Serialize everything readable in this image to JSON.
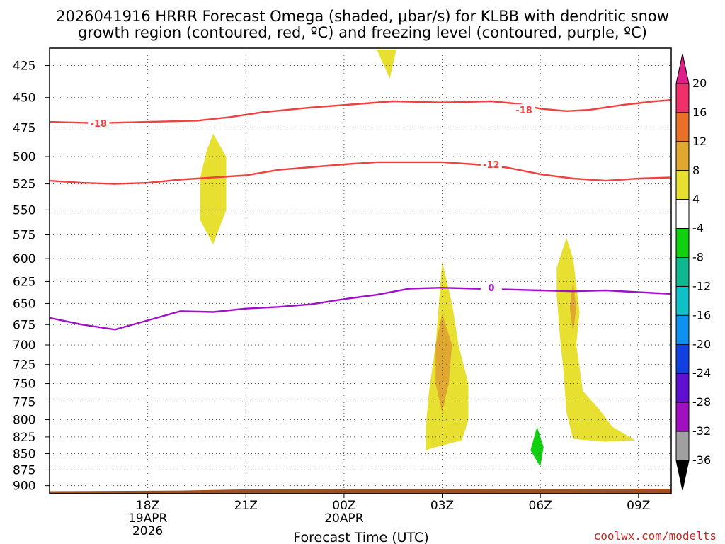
{
  "chart_data": {
    "type": "contour",
    "title_lines": [
      "2026041916 HRRR Forecast Omega (shaded, μbar/s) for KLBB with dendritic snow",
      "growth region (contoured, red, ºC) and freezing level (contoured, purple, ºC)"
    ],
    "xlabel": "Forecast Time (UTC)",
    "credit": "coolwx.com/modelts",
    "x_axis": {
      "unit": "hours since 2026-04-19 00Z",
      "range": [
        15,
        34
      ],
      "ticks": [
        {
          "value": 18,
          "lines": [
            "18Z",
            "19APR",
            "2026"
          ]
        },
        {
          "value": 21,
          "lines": [
            "21Z"
          ]
        },
        {
          "value": 24,
          "lines": [
            "00Z",
            "20APR"
          ]
        },
        {
          "value": 27,
          "lines": [
            "03Z"
          ]
        },
        {
          "value": 30,
          "lines": [
            "06Z"
          ]
        },
        {
          "value": 33,
          "lines": [
            "09Z"
          ]
        }
      ]
    },
    "y_axis": {
      "unit": "hPa",
      "scale": "log",
      "range": [
        913,
        412
      ],
      "ticks": [
        425,
        450,
        475,
        500,
        525,
        550,
        575,
        600,
        625,
        650,
        675,
        700,
        725,
        750,
        775,
        800,
        825,
        850,
        875,
        900
      ]
    },
    "grid": true,
    "colorbar": {
      "labels": [
        "20",
        "16",
        "12",
        "8",
        "4",
        "-4",
        "-8",
        "-12",
        "-16",
        "-20",
        "-24",
        "-28",
        "-32",
        "-36"
      ],
      "colors": [
        "#f0306a",
        "#e87028",
        "#e0a830",
        "#e8e030",
        "#ffffff",
        "#10d010",
        "#10b890",
        "#10c0c8",
        "#1090f0",
        "#1040e0",
        "#6010d0",
        "#a010c0",
        "#a0a0a0"
      ],
      "top_color": "#e0208a",
      "bottom_color": "#000000"
    },
    "contours": [
      {
        "level": "-18",
        "color": "#f04040",
        "points": [
          [
            15,
            470
          ],
          [
            16.5,
            471
          ],
          [
            18,
            470
          ],
          [
            19.5,
            469
          ],
          [
            20.5,
            466
          ],
          [
            21.5,
            462
          ],
          [
            23,
            458
          ],
          [
            24.5,
            455
          ],
          [
            25.5,
            453
          ],
          [
            27,
            454
          ],
          [
            28.5,
            453
          ],
          [
            29.3,
            455
          ],
          [
            30,
            459
          ],
          [
            30.8,
            461
          ],
          [
            31.5,
            460
          ],
          [
            32.5,
            456
          ],
          [
            33.5,
            453
          ],
          [
            34,
            452
          ]
        ]
      },
      {
        "level": "-12",
        "color": "#f04040",
        "points": [
          [
            15,
            522
          ],
          [
            16,
            524
          ],
          [
            17,
            525
          ],
          [
            18,
            524
          ],
          [
            19,
            521
          ],
          [
            20,
            519
          ],
          [
            21,
            517
          ],
          [
            22,
            512
          ],
          [
            24,
            507
          ],
          [
            25,
            505
          ],
          [
            27,
            505
          ],
          [
            28,
            507
          ],
          [
            29,
            510
          ],
          [
            30,
            516
          ],
          [
            31,
            520
          ],
          [
            32,
            522
          ],
          [
            33,
            520
          ],
          [
            34,
            519
          ]
        ]
      },
      {
        "level": "0",
        "color": "#a010c8",
        "points": [
          [
            15,
            667
          ],
          [
            16,
            675
          ],
          [
            17,
            681
          ],
          [
            18,
            670
          ],
          [
            19,
            659
          ],
          [
            20,
            660
          ],
          [
            21,
            656
          ],
          [
            22,
            654
          ],
          [
            23,
            651
          ],
          [
            24,
            645
          ],
          [
            25,
            640
          ],
          [
            26,
            633
          ],
          [
            27,
            632
          ],
          [
            28,
            633
          ],
          [
            29,
            634
          ],
          [
            30,
            635
          ],
          [
            31,
            636
          ],
          [
            32,
            635
          ],
          [
            33,
            637
          ],
          [
            34,
            639
          ]
        ]
      }
    ],
    "contour_labels": [
      {
        "text": "-18",
        "x": 16.5,
        "y": 471,
        "color": "#f04040"
      },
      {
        "text": "-18",
        "x": 29.5,
        "y": 460,
        "color": "#f04040"
      },
      {
        "text": "-12",
        "x": 28.5,
        "y": 507,
        "color": "#f04040"
      },
      {
        "text": "0",
        "x": 28.5,
        "y": 632,
        "color": "#a010c8"
      }
    ],
    "shaded_regions": [
      {
        "value_bin": "4-8",
        "color": "#e8e030",
        "points": [
          [
            25.6,
            413
          ],
          [
            25.0,
            413
          ],
          [
            25.4,
            435
          ]
        ]
      },
      {
        "value_bin": "4-8",
        "color": "#e8e030",
        "points": [
          [
            20.0,
            480
          ],
          [
            20.4,
            500
          ],
          [
            20.4,
            550
          ],
          [
            20.0,
            585
          ],
          [
            19.6,
            560
          ],
          [
            19.6,
            520
          ],
          [
            19.8,
            495
          ]
        ]
      },
      {
        "value_bin": "4-8",
        "color": "#e8e030",
        "points": [
          [
            27.0,
            603
          ],
          [
            27.3,
            650
          ],
          [
            27.5,
            700
          ],
          [
            27.8,
            750
          ],
          [
            27.8,
            800
          ],
          [
            27.6,
            830
          ],
          [
            26.8,
            840
          ],
          [
            26.5,
            845
          ],
          [
            26.5,
            810
          ],
          [
            26.6,
            760
          ],
          [
            26.8,
            700
          ],
          [
            26.9,
            650
          ]
        ]
      },
      {
        "value_bin": "8-12",
        "color": "#e0a830",
        "points": [
          [
            27.0,
            662
          ],
          [
            27.3,
            700
          ],
          [
            27.2,
            750
          ],
          [
            27.0,
            790
          ],
          [
            26.8,
            750
          ],
          [
            26.8,
            700
          ]
        ]
      },
      {
        "value_bin": "4-8",
        "color": "#e8e030",
        "points": [
          [
            30.8,
            578
          ],
          [
            31.0,
            600
          ],
          [
            31.2,
            660
          ],
          [
            31.1,
            700
          ],
          [
            31.3,
            760
          ],
          [
            31.8,
            785
          ],
          [
            32.2,
            810
          ],
          [
            32.9,
            830
          ],
          [
            32.0,
            832
          ],
          [
            31.0,
            828
          ],
          [
            30.8,
            790
          ],
          [
            30.7,
            730
          ],
          [
            30.6,
            690
          ],
          [
            30.5,
            640
          ],
          [
            30.5,
            610
          ]
        ]
      },
      {
        "value_bin": "8-12",
        "color": "#e0a830",
        "points": [
          [
            31.0,
            625
          ],
          [
            31.1,
            655
          ],
          [
            31.0,
            685
          ],
          [
            30.9,
            655
          ]
        ]
      },
      {
        "value_bin": "-8--4",
        "color": "#10d010",
        "points": [
          [
            29.9,
            810
          ],
          [
            30.1,
            840
          ],
          [
            30.0,
            870
          ],
          [
            29.7,
            845
          ]
        ]
      }
    ],
    "terrain": {
      "color": "#a05020",
      "surface_pressure": [
        [
          15,
          909
        ],
        [
          19,
          908
        ],
        [
          21,
          906
        ],
        [
          34,
          905
        ]
      ]
    }
  }
}
